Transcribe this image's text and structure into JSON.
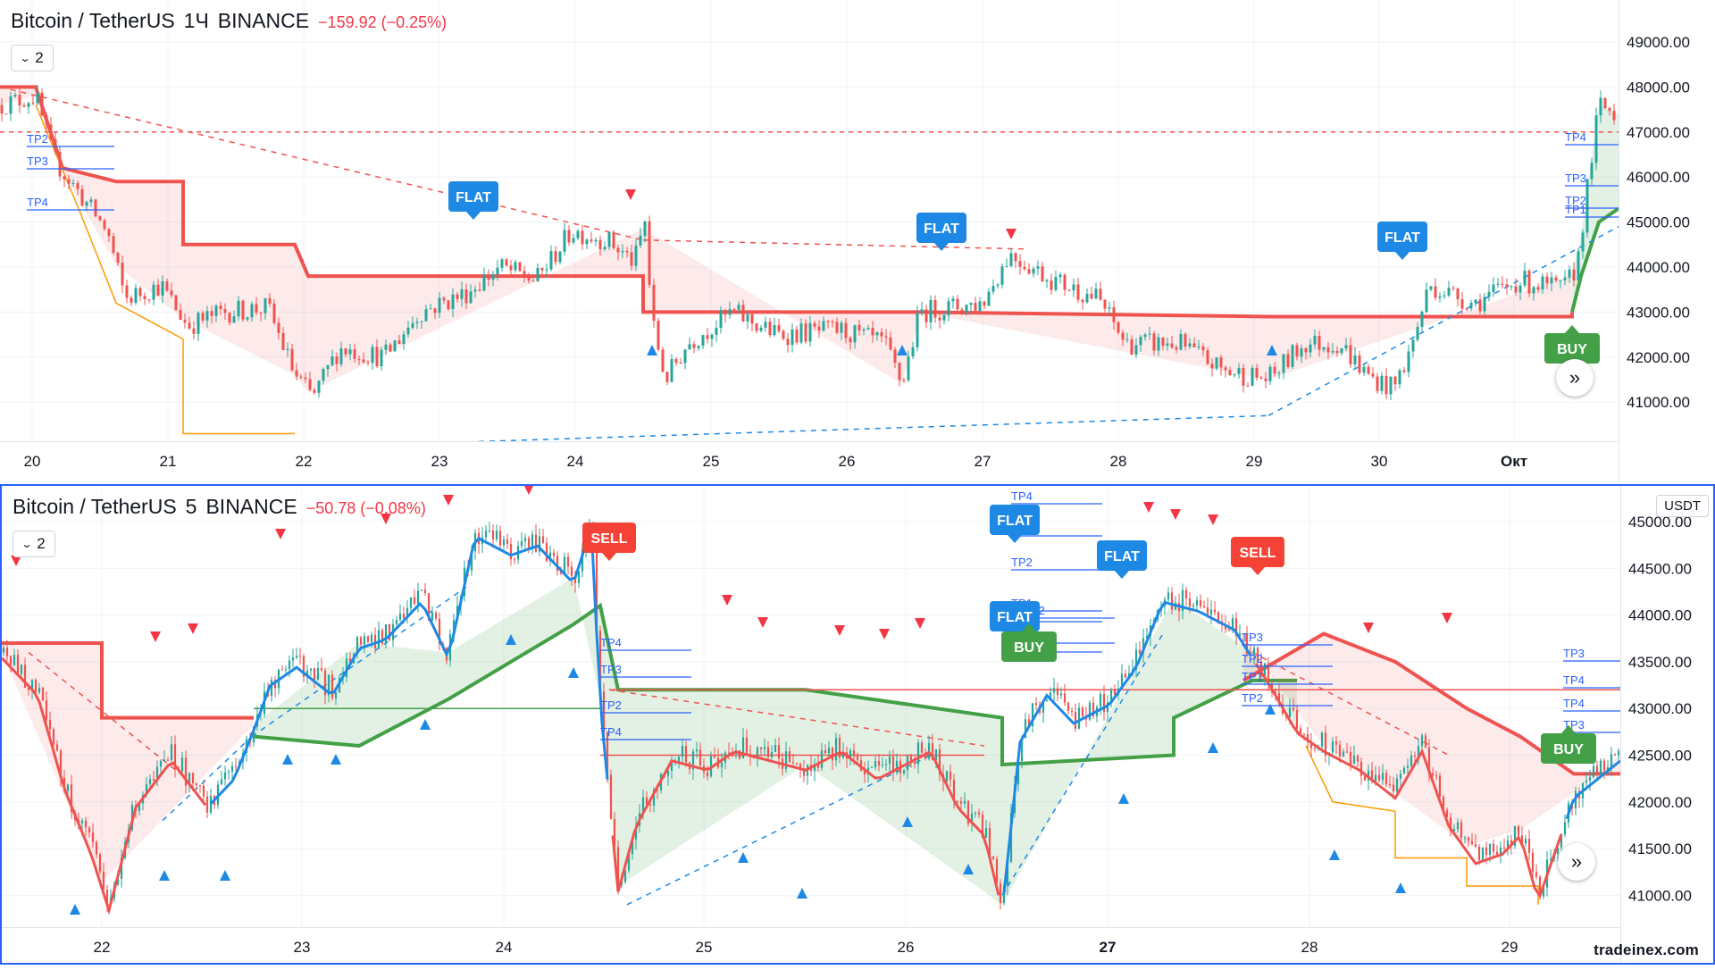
{
  "panes": [
    {
      "title": {
        "symbol": "Bitcoin / TetherUS",
        "interval": "1Ч",
        "exchange": "BINANCE",
        "change": "−159.92 (−0.25%)"
      },
      "collapse_count": "2",
      "price_axis": [
        {
          "label": "49000.00",
          "v": 49000
        },
        {
          "label": "48000.00",
          "v": 48000
        },
        {
          "label": "47000.00",
          "v": 47000
        },
        {
          "label": "46000.00",
          "v": 46000
        },
        {
          "label": "45000.00",
          "v": 45000
        },
        {
          "label": "44000.00",
          "v": 44000
        },
        {
          "label": "43000.00",
          "v": 43000
        },
        {
          "label": "42000.00",
          "v": 42000
        },
        {
          "label": "41000.00",
          "v": 41000
        }
      ],
      "time_axis": [
        "20",
        "21",
        "22",
        "23",
        "24",
        "25",
        "26",
        "27",
        "28",
        "29",
        "30",
        "Окт"
      ],
      "signals": [
        {
          "label": "FLAT",
          "kind": "flat"
        },
        {
          "label": "FLAT",
          "kind": "flat"
        },
        {
          "label": "FLAT",
          "kind": "flat"
        },
        {
          "label": "BUY",
          "kind": "buy"
        }
      ],
      "tp_labels": [
        "TP2",
        "TP3",
        "TP4",
        "TP4",
        "TP3",
        "TP2",
        "TP1"
      ]
    },
    {
      "title": {
        "symbol": "Bitcoin / TetherUS",
        "interval": "5",
        "exchange": "BINANCE",
        "change": "−50.78 (−0.08%)"
      },
      "collapse_count": "2",
      "currency": "USDT",
      "price_axis": [
        {
          "label": "45000.00",
          "v": 45000
        },
        {
          "label": "44500.00",
          "v": 44500
        },
        {
          "label": "44000.00",
          "v": 44000
        },
        {
          "label": "43500.00",
          "v": 43500
        },
        {
          "label": "43000.00",
          "v": 43000
        },
        {
          "label": "42500.00",
          "v": 42500
        },
        {
          "label": "42000.00",
          "v": 42000
        },
        {
          "label": "41500.00",
          "v": 41500
        },
        {
          "label": "41000.00",
          "v": 41000
        }
      ],
      "time_axis": [
        "22",
        "23",
        "24",
        "25",
        "26",
        "27",
        "28",
        "29"
      ],
      "signals": [
        {
          "label": "BUY",
          "kind": "buy"
        },
        {
          "label": "FLAT",
          "kind": "flat"
        },
        {
          "label": "SELL",
          "kind": "sell"
        },
        {
          "label": "FLAT",
          "kind": "flat"
        },
        {
          "label": "FLAT",
          "kind": "flat"
        },
        {
          "label": "FLAT",
          "kind": "flat"
        },
        {
          "label": "BUY",
          "kind": "buy"
        },
        {
          "label": "SELL",
          "kind": "sell"
        },
        {
          "label": "BUY",
          "kind": "buy"
        }
      ],
      "tp_labels": [
        "TP4",
        "TP3",
        "TP2",
        "TP1",
        "TP1",
        "TP2",
        "TP3",
        "TP4",
        "TP4",
        "TP3",
        "TP2",
        "TP4",
        "TP3",
        "TP2",
        "TP1",
        "TP2",
        "TP3",
        "TP4",
        "TP4",
        "TP3",
        "TP2",
        "TP1"
      ]
    }
  ],
  "colors": {
    "bull": "#26a69a",
    "bear": "#ef5350",
    "buy": "#43a047",
    "sell": "#f44336",
    "flat": "#1e88e5",
    "tp": "#2962ff"
  },
  "icons": {
    "scroll": "double-chevron-right-icon",
    "collapse": "chevron-down-icon"
  },
  "watermark": "tradeinex.com"
}
